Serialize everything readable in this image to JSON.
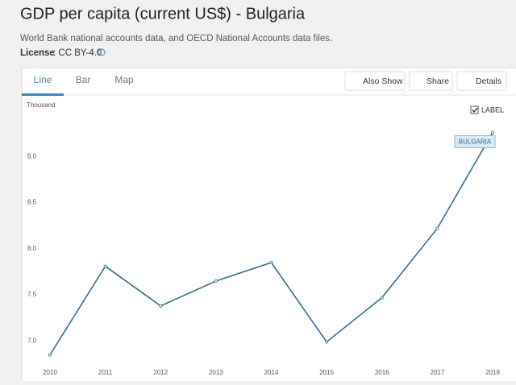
{
  "header": {
    "title": "GDP per capita (current US$) - Bulgaria",
    "source": "World Bank national accounts data, and OECD National Accounts data files.",
    "license_label": "License",
    "license_value": ": CC BY-4.0"
  },
  "tabs": [
    "Line",
    "Bar",
    "Map"
  ],
  "buttons": [
    "Also Show",
    "Share",
    "Details"
  ],
  "chart_data": {
    "type": "line",
    "y_axis_label": "Thousand",
    "label_toggle": "LABEL",
    "categories": [
      "2010",
      "2011",
      "2012",
      "2013",
      "2014",
      "2015",
      "2016",
      "2017",
      "2018"
    ],
    "series": [
      {
        "name": "BULGARIA",
        "color": "#2f6f95",
        "values": [
          6.85,
          7.81,
          7.38,
          7.65,
          7.85,
          6.99,
          7.47,
          8.22,
          9.26
        ]
      }
    ],
    "ylim": [
      6.75,
      9.43
    ],
    "yticks": [
      {
        "value": 7,
        "label": "7.0"
      },
      {
        "value": 7.5,
        "label": "7.5"
      },
      {
        "value": 8,
        "label": "8.0"
      },
      {
        "value": 8.5,
        "label": "8.5"
      },
      {
        "value": 9,
        "label": "9.0"
      }
    ],
    "grid": false
  }
}
